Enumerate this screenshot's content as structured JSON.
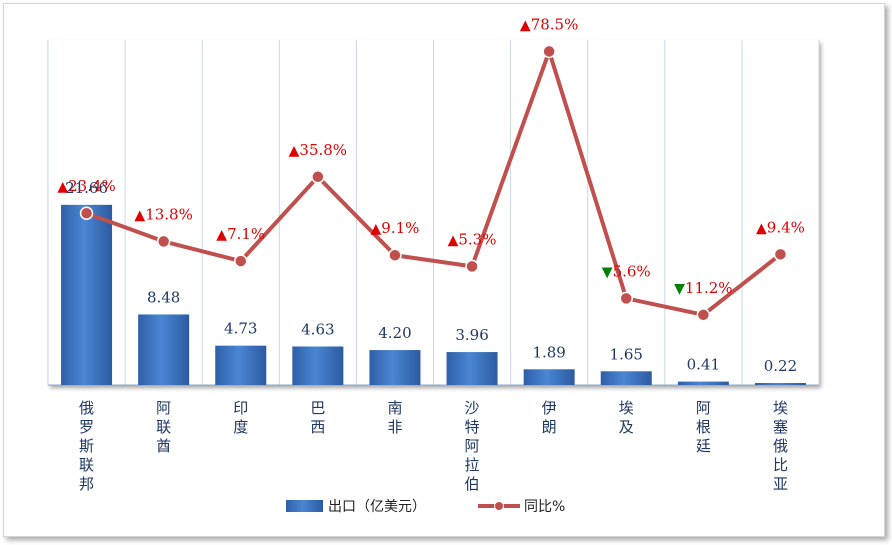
{
  "chart_data": {
    "type": "bar",
    "categories": [
      "俄罗斯联邦",
      "阿联酋",
      "印度",
      "巴西",
      "南非",
      "沙特阿拉伯",
      "伊朗",
      "埃及",
      "阿根廷",
      "埃塞俄比亚"
    ],
    "series": [
      {
        "name": "出口（亿美元）",
        "type": "bar",
        "values": [
          21.66,
          8.48,
          4.73,
          4.63,
          4.2,
          3.96,
          1.89,
          1.65,
          0.41,
          0.22
        ],
        "labels": [
          "21.66",
          "8.48",
          "4.73",
          "4.63",
          "4.20",
          "3.96",
          "1.89",
          "1.65",
          "0.41",
          "0.22"
        ],
        "color": "#3b73c4"
      },
      {
        "name": "同比%",
        "type": "line",
        "values": [
          23.4,
          13.8,
          7.1,
          35.8,
          9.1,
          5.3,
          78.5,
          -5.6,
          -11.2,
          9.4
        ],
        "labels": [
          "23.4%",
          "13.8%",
          "7.1%",
          "35.8%",
          "9.1%",
          "5.3%",
          "78.5%",
          "5.6%",
          "11.2%",
          "9.4%"
        ],
        "color": "#c0504d"
      }
    ],
    "up_color": "#e00000",
    "down_color": "#008000",
    "up_marker": "▲",
    "down_marker": "▼",
    "bar_ylim": [
      0,
      22
    ],
    "line_ylim": [
      -15,
      80
    ],
    "grid": "vertical",
    "legend_position": "bottom"
  }
}
